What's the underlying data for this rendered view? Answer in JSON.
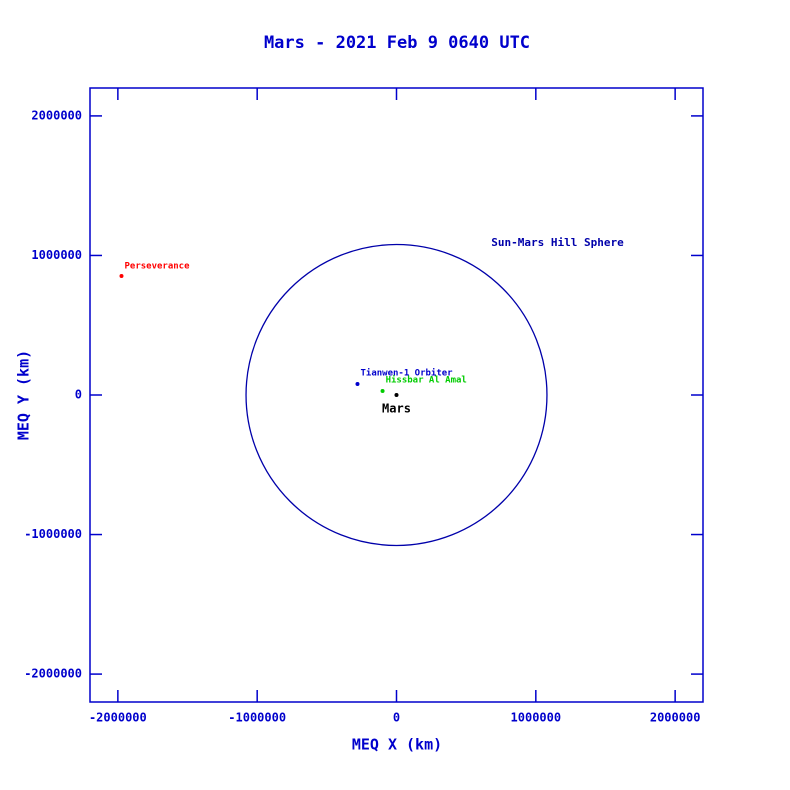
{
  "chart_data": {
    "type": "scatter",
    "title": "Mars - 2021 Feb 9 0640 UTC",
    "x_label": "MEQ X (km)",
    "y_label": "MEQ Y (km)",
    "xlim": [
      -2200000,
      2200000
    ],
    "ylim": [
      -2200000,
      2200000
    ],
    "xticks": [
      -2000000,
      -1000000,
      0,
      1000000,
      2000000
    ],
    "yticks": [
      -2000000,
      -1000000,
      0,
      1000000,
      2000000
    ],
    "axis_color": "#0000cc",
    "series": [
      {
        "name": "Perseverance",
        "color": "#ff0000",
        "x": [
          -1974000
        ],
        "values": [
          853000
        ]
      },
      {
        "name": "Tianwen-1 Orbiter",
        "color": "#0000cc",
        "x": [
          -280000
        ],
        "values": [
          79000
        ]
      },
      {
        "name": "Hissbar Al Amal",
        "color": "#00cc00",
        "x": [
          -100000
        ],
        "values": [
          29000
        ]
      },
      {
        "name": "Mars",
        "color": "#000000",
        "x": [
          0
        ],
        "values": [
          0
        ]
      }
    ],
    "hill_sphere": {
      "label": "Sun-Mars Hill Sphere",
      "radius": 1080000,
      "color": "#0000aa"
    }
  }
}
